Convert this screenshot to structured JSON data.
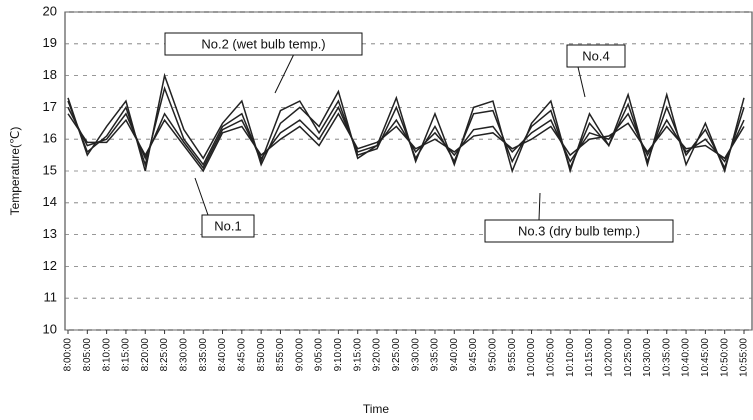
{
  "chart_data": {
    "type": "line",
    "x_label": "Time",
    "y_label": "Temperature(℃)",
    "categories": [
      "8:00:00",
      "8:05:00",
      "8:10:00",
      "8:15:00",
      "8:20:00",
      "8:25:00",
      "8:30:00",
      "8:35:00",
      "8:40:00",
      "8:45:00",
      "8:50:00",
      "8:55:00",
      "9:00:00",
      "9:05:00",
      "9:10:00",
      "9:15:00",
      "9:20:00",
      "9:25:00",
      "9:30:00",
      "9:35:00",
      "9:40:00",
      "9:45:00",
      "9:50:00",
      "9:55:00",
      "10:00:00",
      "10:05:00",
      "10:10:00",
      "10:15:00",
      "10:20:00",
      "10:25:00",
      "10:30:00",
      "10:35:00",
      "10:40:00",
      "10:45:00",
      "10:50:00",
      "10:55:00"
    ],
    "series": [
      {
        "name": "No.1",
        "color": "#222222",
        "values": [
          17.0,
          15.8,
          16.0,
          16.8,
          15.4,
          16.8,
          15.9,
          15.1,
          16.3,
          16.6,
          15.4,
          16.2,
          16.6,
          16.0,
          17.0,
          15.6,
          15.8,
          16.6,
          15.6,
          16.2,
          15.5,
          16.3,
          16.4,
          15.6,
          16.2,
          16.6,
          15.3,
          16.2,
          16.0,
          16.8,
          15.5,
          16.6,
          15.6,
          16.0,
          15.3,
          16.6
        ]
      },
      {
        "name": "No.2 (wet bulb temp.)",
        "color": "#222222",
        "values": [
          17.2,
          15.6,
          16.1,
          17.0,
          15.2,
          17.6,
          16.0,
          15.2,
          16.4,
          16.8,
          15.3,
          16.9,
          17.2,
          16.2,
          17.2,
          15.5,
          15.7,
          17.0,
          15.4,
          16.4,
          15.3,
          16.8,
          16.9,
          15.3,
          16.4,
          16.9,
          15.1,
          16.5,
          15.8,
          17.1,
          15.3,
          17.0,
          15.5,
          16.3,
          15.1,
          17.0
        ]
      },
      {
        "name": "No.3 (dry bulb temp.)",
        "color": "#222222",
        "values": [
          16.8,
          15.9,
          15.9,
          16.6,
          15.5,
          16.6,
          15.8,
          15.0,
          16.2,
          16.4,
          15.5,
          16.0,
          16.4,
          15.8,
          16.8,
          15.7,
          15.9,
          16.4,
          15.7,
          16.0,
          15.6,
          16.1,
          16.2,
          15.7,
          16.0,
          16.4,
          15.5,
          16.0,
          16.1,
          16.5,
          15.6,
          16.4,
          15.7,
          15.8,
          15.4,
          16.4
        ]
      },
      {
        "name": "No.4",
        "color": "#222222",
        "values": [
          17.3,
          15.5,
          16.4,
          17.2,
          15.0,
          18.0,
          16.3,
          15.4,
          16.5,
          17.2,
          15.2,
          16.5,
          17.0,
          16.4,
          17.5,
          15.4,
          15.8,
          17.3,
          15.3,
          16.8,
          15.2,
          17.0,
          17.2,
          15.0,
          16.5,
          17.2,
          15.0,
          16.8,
          15.8,
          17.4,
          15.2,
          17.4,
          15.2,
          16.5,
          15.0,
          17.3
        ]
      }
    ],
    "ylim": [
      10,
      20
    ],
    "yticks": [
      10,
      11,
      12,
      13,
      14,
      15,
      16,
      17,
      18,
      19,
      20
    ],
    "grid": true
  }
}
